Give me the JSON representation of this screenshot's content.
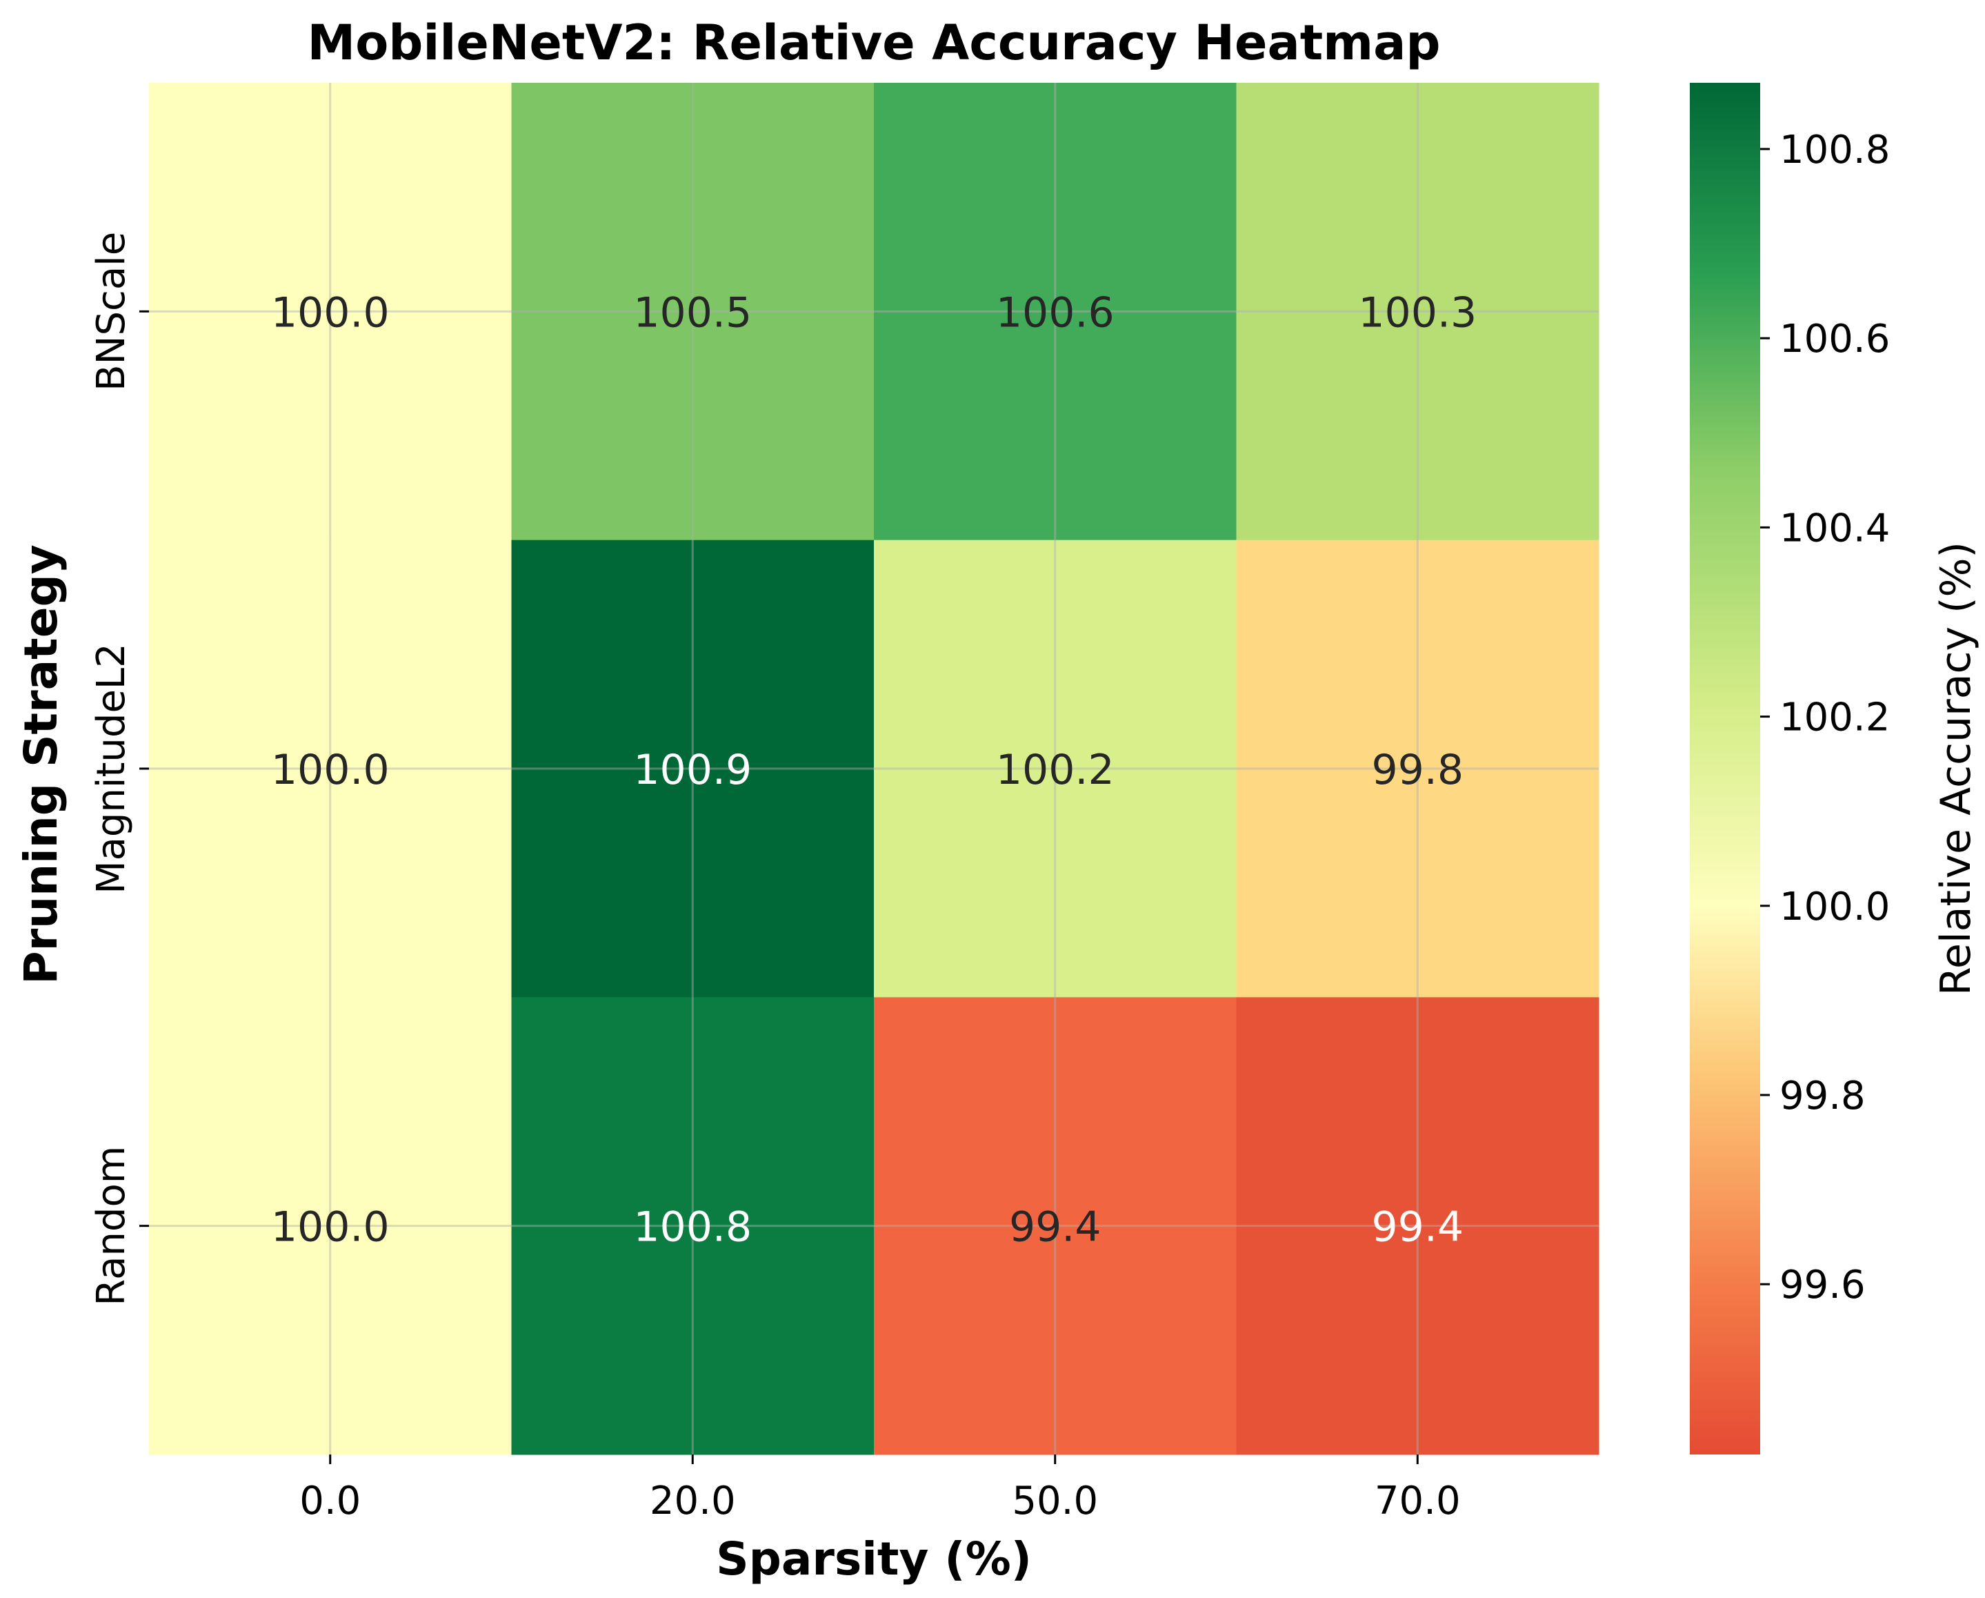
{
  "chart_data": {
    "type": "heatmap",
    "title": "MobileNetV2: Relative Accuracy Heatmap",
    "xlabel": "Sparsity (%)",
    "ylabel": "Pruning Strategy",
    "x_categories": [
      "0.0",
      "20.0",
      "50.0",
      "70.0"
    ],
    "y_categories": [
      "BNScale",
      "MagnitudeL2",
      "Random"
    ],
    "values": [
      [
        100.0,
        100.5,
        100.6,
        100.3
      ],
      [
        100.0,
        100.9,
        100.2,
        99.8
      ],
      [
        100.0,
        100.8,
        99.4,
        99.4
      ]
    ],
    "cell_labels": [
      [
        "100.0",
        "100.5",
        "100.6",
        "100.3"
      ],
      [
        "100.0",
        "100.9",
        "100.2",
        "99.8"
      ],
      [
        "100.0",
        "100.8",
        "99.4",
        "99.4"
      ]
    ],
    "colorbar": {
      "label": "Relative Accuracy (%)",
      "range": [
        99.42,
        100.87
      ],
      "center": 100.0,
      "ticks": [
        99.6,
        99.8,
        100.0,
        100.2,
        100.4,
        100.6,
        100.8
      ],
      "tick_labels": [
        "99.6",
        "99.8",
        "100.0",
        "100.2",
        "100.4",
        "100.6",
        "100.8"
      ],
      "colormap": "RdYlGn"
    },
    "grid": true,
    "cell_colors": [
      [
        "#fefebd",
        "#7dc565",
        "#42ab5a",
        "#b6de75"
      ],
      [
        "#fefebd",
        "#006837",
        "#d9ef8b",
        "#fed883"
      ],
      [
        "#fefebd",
        "#0c7d42",
        "#f16640",
        "#e75337"
      ]
    ]
  }
}
